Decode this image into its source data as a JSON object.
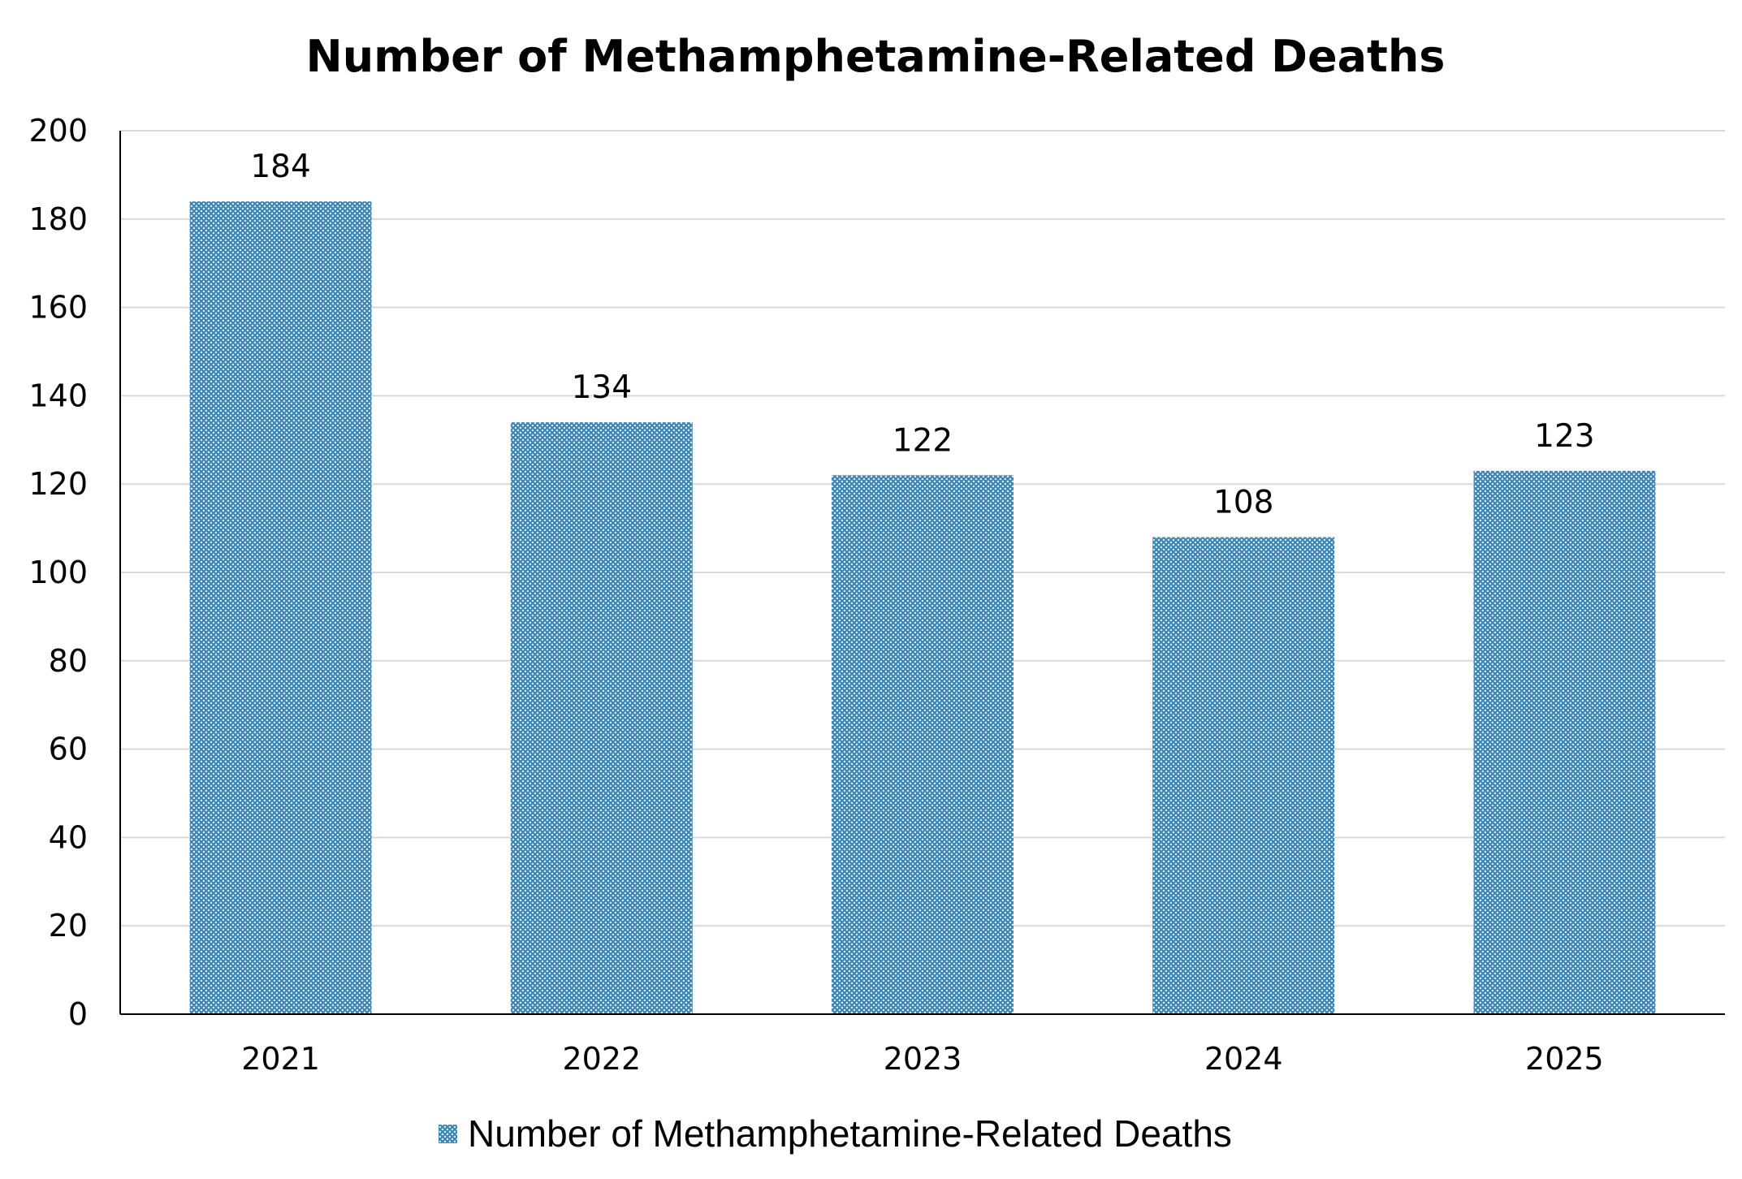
{
  "chart_data": {
    "type": "bar",
    "title": "Number of Methamphetamine-Related Deaths",
    "xlabel": "",
    "ylabel": "",
    "categories": [
      "2021",
      "2022",
      "2023",
      "2024",
      "2025"
    ],
    "series": [
      {
        "name": "Number of Methamphetamine-Related Deaths",
        "values": [
          184,
          134,
          122,
          108,
          123
        ],
        "color": "#3f86b5",
        "pattern": "dotted"
      }
    ],
    "data_labels": [
      "184",
      "134",
      "122",
      "108",
      "123"
    ],
    "ylim": [
      0,
      200
    ],
    "yticks": [
      0,
      20,
      40,
      60,
      80,
      100,
      120,
      140,
      160,
      180,
      200
    ],
    "ytick_labels": [
      "0",
      "20",
      "40",
      "60",
      "80",
      "100",
      "120",
      "140",
      "160",
      "180",
      "200"
    ],
    "grid": true,
    "legend_position": "bottom-center"
  }
}
